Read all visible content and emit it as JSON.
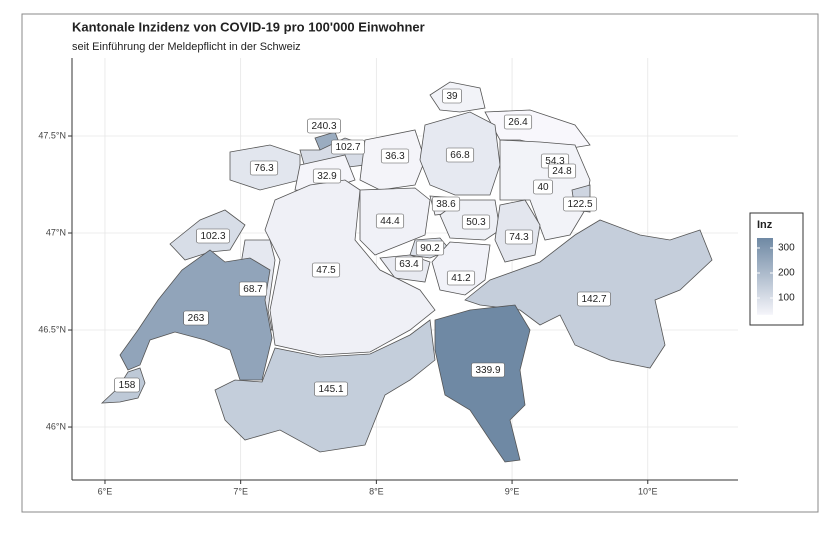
{
  "chart_data": {
    "type": "map",
    "title": "Kantonale Inzidenz von COVID-19 pro 100'000 Einwohner",
    "subtitle": "seit Einführung der Meldepflicht in der Schweiz",
    "values": [
      39,
      26.4,
      240.3,
      102.7,
      36.3,
      66.8,
      76.3,
      32.9,
      54.3,
      24.8,
      40,
      122.5,
      38.6,
      50.3,
      74.3,
      102.3,
      44.4,
      90.2,
      63.4,
      41.2,
      47.5,
      68.7,
      142.7,
      263,
      339.9,
      145.1,
      158
    ],
    "xlim": [
      5.757,
      10.665
    ],
    "ylim": [
      45.727,
      47.902
    ],
    "xticks": [
      {
        "value": 6,
        "label": "6°E"
      },
      {
        "value": 7,
        "label": "7°E"
      },
      {
        "value": 8,
        "label": "8°E"
      },
      {
        "value": 9,
        "label": "9°E"
      },
      {
        "value": 10,
        "label": "10°E"
      }
    ],
    "yticks": [
      {
        "value": 46,
        "label": "46°N"
      },
      {
        "value": 46.5,
        "label": "46.5°N"
      },
      {
        "value": 47,
        "label": "47°N"
      },
      {
        "value": 47.5,
        "label": "47.5°N"
      }
    ],
    "grid": true,
    "legend": {
      "title": "Inz",
      "position": "right",
      "lim": [
        32.9,
        339.9
      ],
      "ticks": [
        100,
        200,
        300
      ],
      "low_color": "#f5f5fa",
      "high_color": "#6f89a4"
    }
  }
}
